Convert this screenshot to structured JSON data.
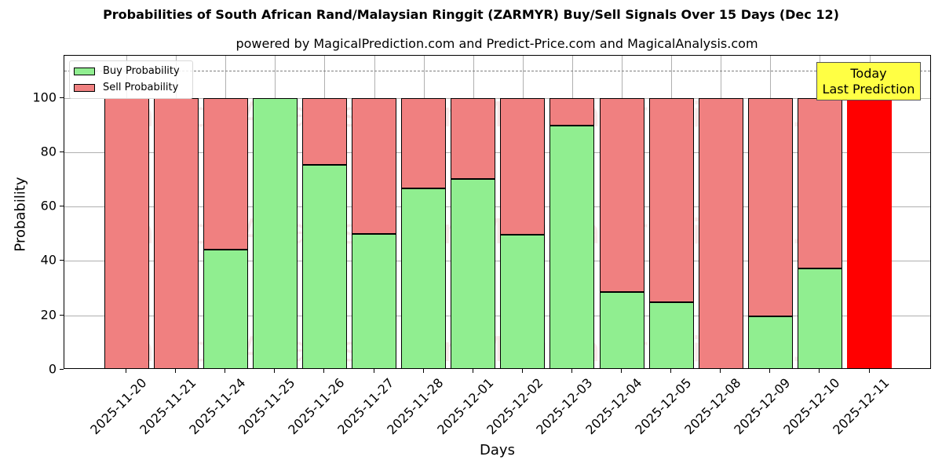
{
  "header": {
    "title": "Probabilities of South African Rand/Malaysian Ringgit (ZARMYR) Buy/Sell Signals Over 15 Days (Dec 12)",
    "subtitle": "powered by MagicalPrediction.com and Predict-Price.com and MagicalAnalysis.com"
  },
  "legend": {
    "buy_label": "Buy Probability",
    "sell_label": "Sell Probability"
  },
  "annotation": {
    "line1": "Today",
    "line2": "Last Prediction"
  },
  "watermarks": [
    "MagicalAnalysis.com",
    "MagicalPrediction.com"
  ],
  "colors": {
    "buy": "#90ee90",
    "sell": "#f08080",
    "today": "#ff0000",
    "annotation_bg": "#ffff44",
    "threshold_line": "#7f7f7f"
  },
  "chart_data": {
    "type": "bar",
    "stacked": true,
    "title": "Probabilities of South African Rand/Malaysian Ringgit (ZARMYR) Buy/Sell Signals Over 15 Days (Dec 12)",
    "subtitle": "powered by MagicalPrediction.com and Predict-Price.com and MagicalAnalysis.com",
    "xlabel": "Days",
    "ylabel": "Probability",
    "ylim": [
      0,
      115
    ],
    "yticks": [
      0,
      20,
      40,
      60,
      80,
      100
    ],
    "grid": true,
    "legend_position": "upper left",
    "threshold_line": 110,
    "categories": [
      "2025-11-20",
      "2025-11-21",
      "2025-11-24",
      "2025-11-25",
      "2025-11-26",
      "2025-11-27",
      "2025-11-28",
      "2025-12-01",
      "2025-12-02",
      "2025-12-03",
      "2025-12-04",
      "2025-12-05",
      "2025-12-08",
      "2025-12-09",
      "2025-12-10",
      "2025-12-11"
    ],
    "series": [
      {
        "name": "Buy Probability",
        "color": "#90ee90",
        "values": [
          0,
          0,
          44.3,
          100,
          75.3,
          49.8,
          66.6,
          70.1,
          49.5,
          89.7,
          28.5,
          24.7,
          0,
          19.6,
          37.3,
          0
        ]
      },
      {
        "name": "Sell Probability",
        "color": "#f08080",
        "values": [
          100,
          100,
          55.7,
          0,
          24.7,
          50.2,
          33.4,
          29.9,
          50.5,
          10.3,
          71.5,
          75.3,
          100,
          80.4,
          62.7,
          0
        ]
      },
      {
        "name": "Today (Last Prediction)",
        "color": "#ff0000",
        "values": [
          0,
          0,
          0,
          0,
          0,
          0,
          0,
          0,
          0,
          0,
          0,
          0,
          0,
          0,
          0,
          100
        ]
      }
    ],
    "annotations": [
      {
        "text": "Today\nLast Prediction",
        "x": "2025-12-11",
        "y": 105
      }
    ]
  }
}
